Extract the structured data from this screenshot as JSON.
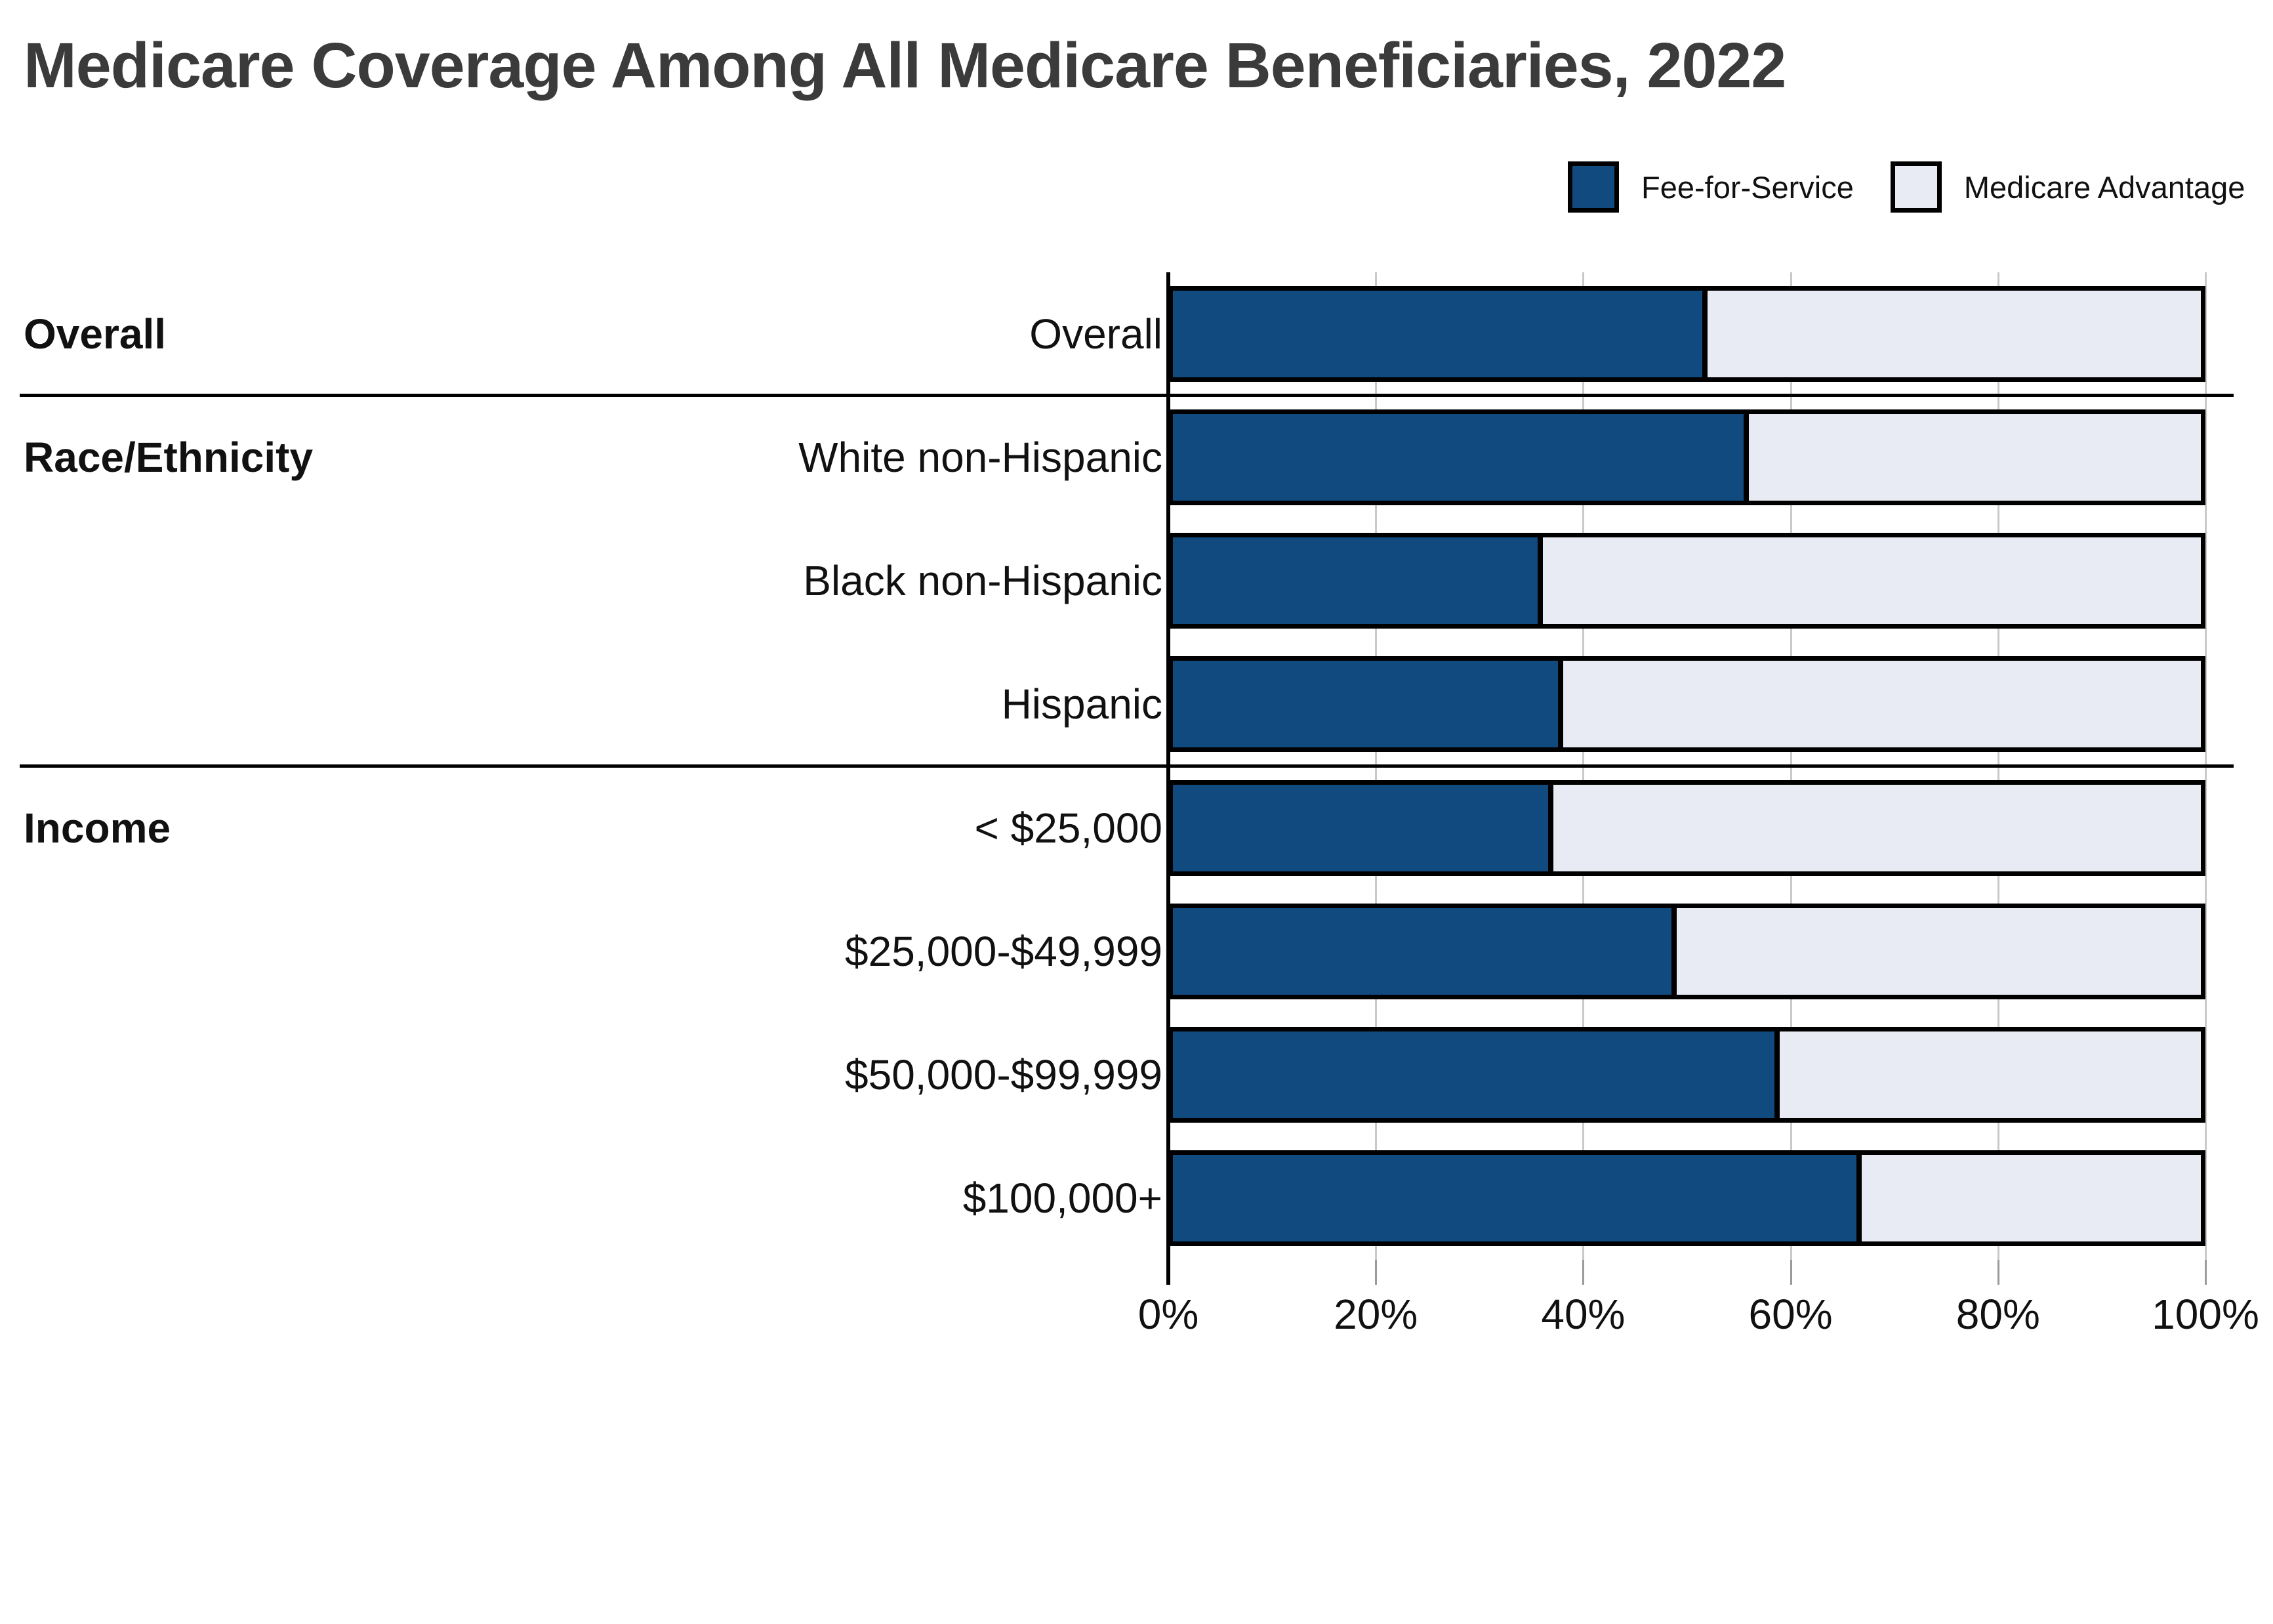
{
  "title": "Medicare Coverage Among All Medicare Beneficiaries, 2022",
  "colors": {
    "fee_for_service": "#114A7E",
    "medicare_advantage": "#E8EBF4",
    "bar_border": "#000000",
    "gridline": "#C9C9C9",
    "title_text": "#3B3B3B"
  },
  "legend": {
    "items": [
      {
        "label": "Fee-for-Service",
        "color": "#114A7E"
      },
      {
        "label": "Medicare Advantage",
        "color": "#E8EBF4"
      }
    ]
  },
  "chart_data": {
    "type": "bar",
    "orientation": "horizontal",
    "stacked": true,
    "title": "Medicare Coverage Among All Medicare Beneficiaries, 2022",
    "series_names": [
      "Fee-for-Service",
      "Medicare Advantage"
    ],
    "x_axis": {
      "min": 0,
      "max": 100,
      "tick_labels": [
        "0%",
        "20%",
        "40%",
        "60%",
        "80%",
        "100%"
      ],
      "tick_values": [
        0,
        20,
        40,
        60,
        80,
        100
      ]
    },
    "grid": true,
    "legend_position": "top-right",
    "groups": [
      {
        "label": "Overall",
        "rows": [
          {
            "label": "Overall",
            "fee_for_service": 52,
            "medicare_advantage": 48
          }
        ]
      },
      {
        "label": "Race/Ethnicity",
        "rows": [
          {
            "label": "White non-Hispanic",
            "fee_for_service": 56,
            "medicare_advantage": 44
          },
          {
            "label": "Black non-Hispanic",
            "fee_for_service": 36,
            "medicare_advantage": 64
          },
          {
            "label": "Hispanic",
            "fee_for_service": 38,
            "medicare_advantage": 62
          }
        ]
      },
      {
        "label": "Income",
        "rows": [
          {
            "label": "< $25,000",
            "fee_for_service": 37,
            "medicare_advantage": 63
          },
          {
            "label": "$25,000-$49,999",
            "fee_for_service": 49,
            "medicare_advantage": 51
          },
          {
            "label": "$50,000-$99,999",
            "fee_for_service": 59,
            "medicare_advantage": 41
          },
          {
            "label": "$100,000+",
            "fee_for_service": 67,
            "medicare_advantage": 33
          }
        ]
      }
    ]
  }
}
